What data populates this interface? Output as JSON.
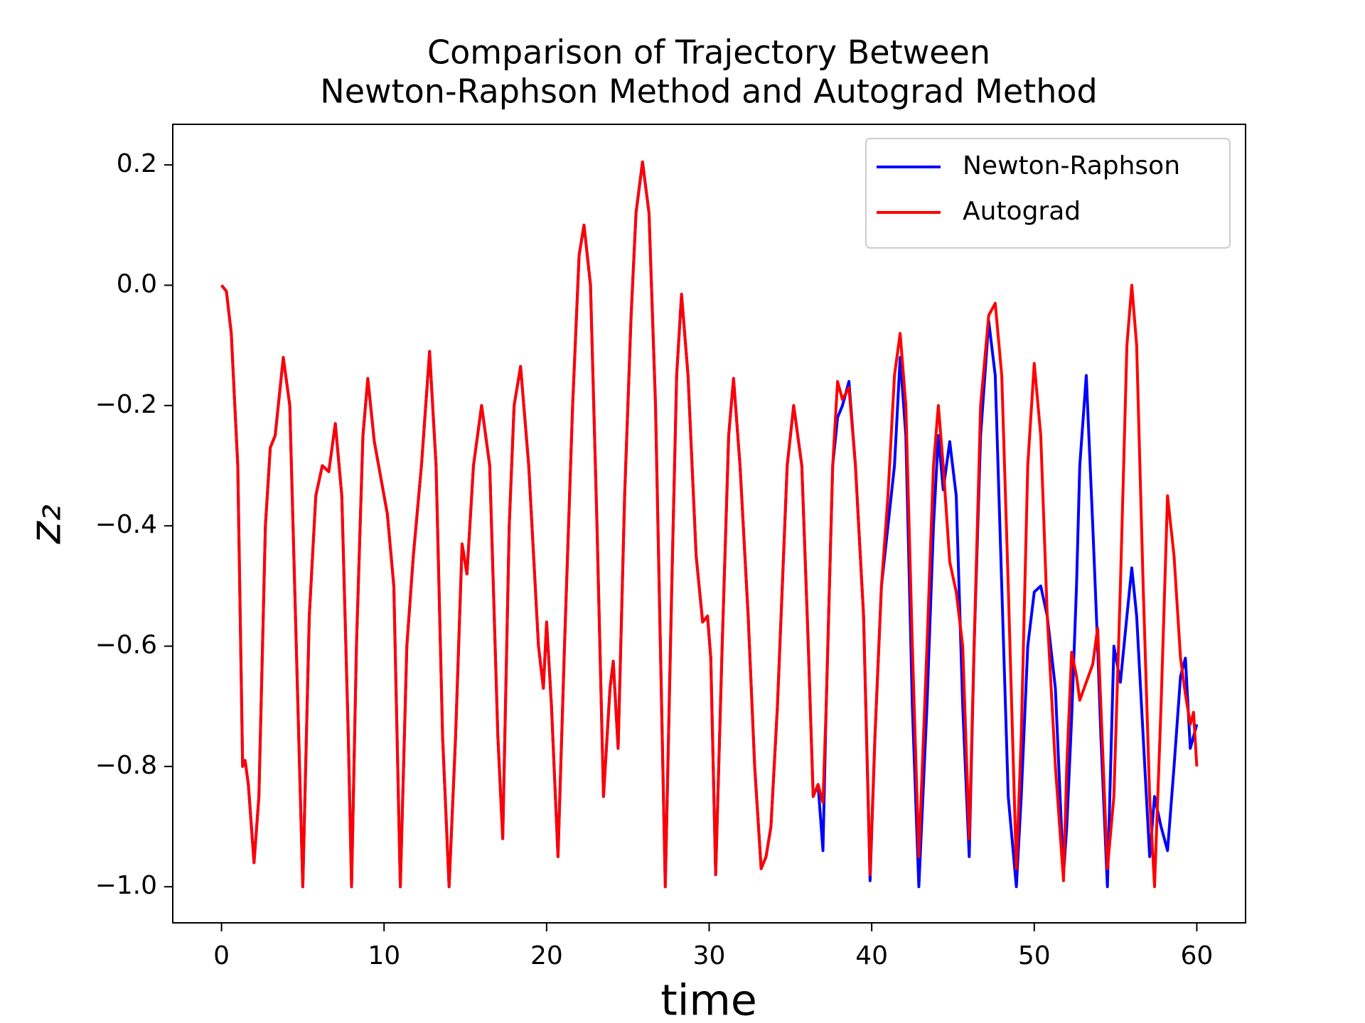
{
  "chart_data": {
    "type": "line",
    "title": [
      "Comparison of Trajectory Between",
      "Newton-Raphson Method and Autograd Method"
    ],
    "xlabel": "time",
    "ylabel": "z₂",
    "xlim": [
      -3,
      63
    ],
    "ylim": [
      -1.06,
      0.2675
    ],
    "xticks": [
      0,
      10,
      20,
      30,
      40,
      50,
      60
    ],
    "yticks": [
      {
        "value": -1.0,
        "label": "−1.0"
      },
      {
        "value": -0.8,
        "label": "−0.8"
      },
      {
        "value": -0.6,
        "label": "−0.6"
      },
      {
        "value": -0.4,
        "label": "−0.4"
      },
      {
        "value": -0.2,
        "label": "−0.2"
      },
      {
        "value": 0.0,
        "label": "0.0"
      },
      {
        "value": 0.2,
        "label": "0.2"
      }
    ],
    "grid": false,
    "legend": "upper right",
    "x": [
      0,
      0.3,
      0.6,
      1.0,
      1.3,
      1.45,
      1.65,
      2.0,
      2.3,
      2.7,
      3.0,
      3.3,
      3.8,
      4.2,
      4.6,
      5.0,
      5.4,
      5.8,
      6.2,
      6.6,
      7.0,
      7.4,
      7.8,
      8.0,
      8.3,
      8.7,
      9.0,
      9.4,
      10.2,
      10.6,
      11.0,
      11.4,
      11.8,
      12.3,
      12.8,
      13.2,
      13.6,
      14.0,
      14.4,
      14.8,
      15.1,
      15.5,
      16.0,
      16.5,
      17.0,
      17.3,
      17.7,
      18.0,
      18.4,
      18.9,
      19.5,
      19.8,
      20.0,
      20.3,
      20.7,
      21.1,
      21.6,
      22.0,
      22.3,
      22.7,
      23.1,
      23.5,
      23.9,
      24.1,
      24.4,
      24.8,
      25.2,
      25.5,
      25.9,
      26.3,
      26.7,
      27.0,
      27.3,
      27.7,
      28.0,
      28.3,
      28.7,
      29.2,
      29.6,
      29.9,
      30.1,
      30.4,
      30.8,
      31.2,
      31.5,
      31.9,
      32.4,
      32.8,
      33.2,
      33.5,
      33.8,
      34.2,
      34.8,
      35.2,
      35.7,
      36.1,
      36.4,
      36.7,
      37.0,
      37.2,
      37.6,
      37.9,
      38.2,
      38.6,
      39.0,
      39.5,
      39.9,
      40.2,
      40.6,
      41.0,
      41.4,
      41.75,
      42.1,
      42.5,
      42.9,
      43.4,
      43.8,
      44.1,
      44.4,
      44.8,
      45.2,
      45.6,
      46.0,
      46.3,
      46.7,
      47.2,
      47.6,
      48.0,
      48.4,
      48.9,
      49.2,
      49.6,
      50.0,
      50.4,
      50.8,
      51.3,
      51.8,
      52.0,
      52.3,
      52.6,
      52.8,
      53.2,
      53.6,
      53.9,
      54.1,
      54.5,
      54.9,
      55.3,
      55.7,
      56.0,
      56.3,
      56.7,
      57.1,
      57.4,
      57.8,
      58.2,
      58.6,
      59.0,
      59.3,
      59.6,
      59.8,
      60.0
    ],
    "series": [
      {
        "name": "Newton-Raphson",
        "color": "#0000ff",
        "values": [
          0.0,
          -0.01,
          -0.08,
          -0.3,
          -0.8,
          -0.79,
          -0.83,
          -0.96,
          -0.85,
          -0.4,
          -0.27,
          -0.25,
          -0.12,
          -0.2,
          -0.6,
          -1.0,
          -0.55,
          -0.35,
          -0.3,
          -0.31,
          -0.23,
          -0.35,
          -0.75,
          -1.0,
          -0.6,
          -0.25,
          -0.155,
          -0.26,
          -0.38,
          -0.5,
          -1.0,
          -0.6,
          -0.45,
          -0.3,
          -0.11,
          -0.3,
          -0.75,
          -1.0,
          -0.75,
          -0.43,
          -0.48,
          -0.3,
          -0.2,
          -0.3,
          -0.75,
          -0.92,
          -0.4,
          -0.2,
          -0.135,
          -0.3,
          -0.6,
          -0.67,
          -0.56,
          -0.7,
          -0.95,
          -0.6,
          -0.2,
          0.05,
          0.1,
          0.0,
          -0.4,
          -0.85,
          -0.67,
          -0.625,
          -0.77,
          -0.35,
          -0.05,
          0.12,
          0.205,
          0.12,
          -0.2,
          -0.6,
          -1.0,
          -0.5,
          -0.15,
          -0.015,
          -0.15,
          -0.45,
          -0.56,
          -0.55,
          -0.62,
          -0.98,
          -0.6,
          -0.25,
          -0.155,
          -0.3,
          -0.55,
          -0.8,
          -0.97,
          -0.95,
          -0.9,
          -0.7,
          -0.3,
          -0.2,
          -0.3,
          -0.6,
          -0.85,
          -0.83,
          -0.94,
          -0.7,
          -0.3,
          -0.22,
          -0.2,
          -0.16,
          -0.3,
          -0.55,
          -0.99,
          -0.75,
          -0.5,
          -0.4,
          -0.3,
          -0.12,
          -0.25,
          -0.7,
          -1.0,
          -0.7,
          -0.4,
          -0.25,
          -0.34,
          -0.26,
          -0.35,
          -0.7,
          -0.95,
          -0.6,
          -0.25,
          -0.06,
          -0.15,
          -0.5,
          -0.85,
          -1.0,
          -0.85,
          -0.6,
          -0.51,
          -0.5,
          -0.55,
          -0.67,
          -0.98,
          -0.9,
          -0.72,
          -0.5,
          -0.3,
          -0.15,
          -0.4,
          -0.6,
          -0.75,
          -1.0,
          -0.6,
          -0.66,
          -0.55,
          -0.47,
          -0.55,
          -0.75,
          -0.95,
          -0.85,
          -0.9,
          -0.94,
          -0.8,
          -0.65,
          -0.62,
          -0.77,
          -0.75,
          -0.73
        ]
      },
      {
        "name": "Autograd",
        "color": "#ff0000",
        "values": [
          0.0,
          -0.01,
          -0.08,
          -0.3,
          -0.8,
          -0.79,
          -0.83,
          -0.96,
          -0.85,
          -0.4,
          -0.27,
          -0.25,
          -0.12,
          -0.2,
          -0.6,
          -1.0,
          -0.55,
          -0.35,
          -0.3,
          -0.31,
          -0.23,
          -0.35,
          -0.75,
          -1.0,
          -0.6,
          -0.25,
          -0.155,
          -0.26,
          -0.38,
          -0.5,
          -1.0,
          -0.6,
          -0.45,
          -0.3,
          -0.11,
          -0.3,
          -0.75,
          -1.0,
          -0.75,
          -0.43,
          -0.48,
          -0.3,
          -0.2,
          -0.3,
          -0.75,
          -0.92,
          -0.4,
          -0.2,
          -0.135,
          -0.3,
          -0.6,
          -0.67,
          -0.56,
          -0.7,
          -0.95,
          -0.6,
          -0.2,
          0.05,
          0.1,
          0.0,
          -0.4,
          -0.85,
          -0.67,
          -0.625,
          -0.77,
          -0.35,
          -0.05,
          0.12,
          0.205,
          0.12,
          -0.2,
          -0.6,
          -1.0,
          -0.5,
          -0.15,
          -0.015,
          -0.15,
          -0.45,
          -0.56,
          -0.55,
          -0.62,
          -0.98,
          -0.6,
          -0.25,
          -0.155,
          -0.3,
          -0.55,
          -0.8,
          -0.97,
          -0.95,
          -0.9,
          -0.7,
          -0.3,
          -0.2,
          -0.3,
          -0.6,
          -0.85,
          -0.83,
          -0.86,
          -0.7,
          -0.3,
          -0.16,
          -0.19,
          -0.17,
          -0.3,
          -0.55,
          -0.98,
          -0.75,
          -0.5,
          -0.35,
          -0.15,
          -0.08,
          -0.2,
          -0.6,
          -0.95,
          -0.6,
          -0.3,
          -0.2,
          -0.3,
          -0.46,
          -0.51,
          -0.6,
          -0.92,
          -0.6,
          -0.2,
          -0.05,
          -0.03,
          -0.15,
          -0.5,
          -0.97,
          -0.75,
          -0.3,
          -0.13,
          -0.25,
          -0.55,
          -0.8,
          -0.99,
          -0.8,
          -0.61,
          -0.65,
          -0.69,
          -0.66,
          -0.63,
          -0.57,
          -0.7,
          -0.97,
          -0.85,
          -0.5,
          -0.1,
          0.0,
          -0.1,
          -0.5,
          -0.85,
          -1.0,
          -0.7,
          -0.35,
          -0.45,
          -0.62,
          -0.68,
          -0.73,
          -0.71,
          -0.8
        ]
      }
    ]
  }
}
